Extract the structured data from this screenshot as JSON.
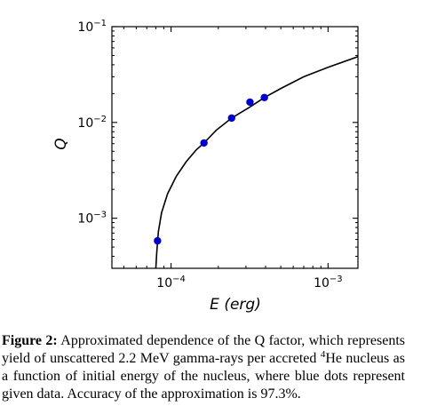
{
  "chart_data": {
    "type": "scatter",
    "x_axis": {
      "label": "E (erg)",
      "scale": "log",
      "range": [
        4.2e-05,
        0.00155
      ],
      "ticks": [
        {
          "value": 0.0001,
          "base": "10",
          "exp": "−4"
        },
        {
          "value": 0.001,
          "base": "10",
          "exp": "−3"
        }
      ]
    },
    "y_axis": {
      "label": "Q",
      "scale": "log",
      "range": [
        0.0003,
        0.1
      ],
      "ticks": [
        {
          "value": 0.001,
          "base": "10",
          "exp": "−3"
        },
        {
          "value": 0.01,
          "base": "10",
          "exp": "−2"
        },
        {
          "value": 0.1,
          "base": "10",
          "exp": "−1"
        }
      ]
    },
    "series": [
      {
        "kind": "scatter",
        "color": "#0000cc",
        "points": [
          {
            "x": 8.2e-05,
            "y": 0.00058
          },
          {
            "x": 0.000162,
            "y": 0.0061
          },
          {
            "x": 0.000243,
            "y": 0.0111
          },
          {
            "x": 0.000318,
            "y": 0.0163
          },
          {
            "x": 0.000393,
            "y": 0.0182
          }
        ]
      },
      {
        "kind": "line",
        "color": "#000000",
        "points": [
          {
            "x": 8e-05,
            "y": 0.0003
          },
          {
            "x": 8.1e-05,
            "y": 0.00043
          },
          {
            "x": 8.3e-05,
            "y": 0.00072
          },
          {
            "x": 8.7e-05,
            "y": 0.00114
          },
          {
            "x": 9.5e-05,
            "y": 0.0018
          },
          {
            "x": 0.000108,
            "y": 0.00274
          },
          {
            "x": 0.000125,
            "y": 0.0039
          },
          {
            "x": 0.000145,
            "y": 0.00519
          },
          {
            "x": 0.000162,
            "y": 0.0061
          },
          {
            "x": 0.000194,
            "y": 0.0083
          },
          {
            "x": 0.000243,
            "y": 0.0111
          },
          {
            "x": 0.000318,
            "y": 0.0145
          },
          {
            "x": 0.000393,
            "y": 0.0182
          },
          {
            "x": 0.0005,
            "y": 0.0226
          },
          {
            "x": 0.0007,
            "y": 0.03
          },
          {
            "x": 0.001,
            "y": 0.0376
          },
          {
            "x": 0.00155,
            "y": 0.0486
          }
        ]
      }
    ],
    "grid": false,
    "legend": "none"
  },
  "caption": {
    "label": "Figure 2:",
    "text_before_sup": " Approximated dependence of the Q factor, which represents yield of unscattered 2.2 MeV gamma-rays per accreted ",
    "sup": "4",
    "text_after_sup": "He nucleus as a function of initial energy of the nucleus, where blue dots represent given data. Accuracy of the approximation is 97.3%."
  }
}
